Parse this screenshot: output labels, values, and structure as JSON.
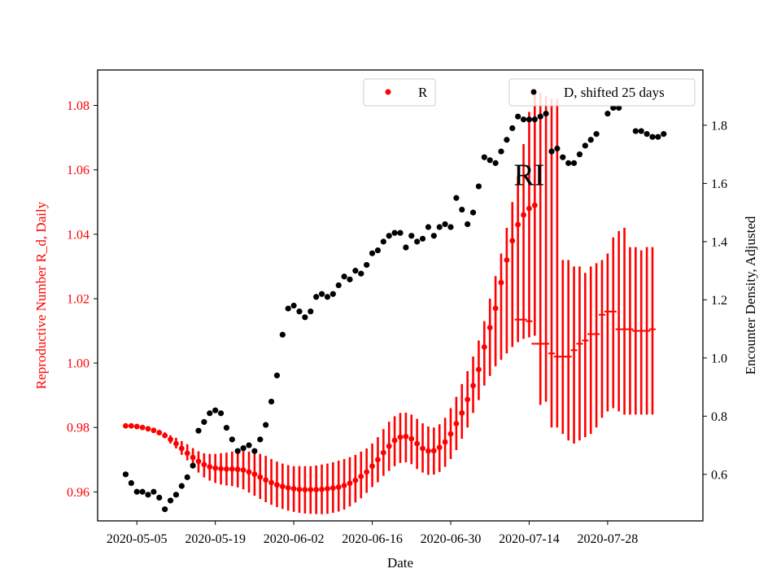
{
  "chart_data": {
    "type": "scatter",
    "title": "",
    "xlabel": "Date",
    "ylabel_left": "Reproductive Number R_d, Daily",
    "ylabel_right": "Encounter Density, Adjusted",
    "x_ticks": [
      "2020-05-05",
      "2020-05-19",
      "2020-06-02",
      "2020-06-16",
      "2020-06-30",
      "2020-07-14",
      "2020-07-28"
    ],
    "xlim": [
      "2020-04-28",
      "2020-08-14"
    ],
    "ylim_left": [
      0.951,
      1.091
    ],
    "y_ticks_left": [
      0.96,
      0.98,
      1.0,
      1.02,
      1.04,
      1.06,
      1.08
    ],
    "ylim_right": [
      0.44,
      1.99
    ],
    "y_ticks_right": [
      0.6,
      0.8,
      1.0,
      1.2,
      1.4,
      1.6,
      1.8
    ],
    "annotation": "RI",
    "annotation_at": {
      "date": "2020-07-14",
      "y": 1.0585
    },
    "legend": [
      {
        "label": "R",
        "color": "#ff0000",
        "placement": "upper-center"
      },
      {
        "label": "D, shifted 25 days",
        "color": "#000000",
        "placement": "upper-right"
      }
    ],
    "colors": {
      "R": "#ff0000",
      "D": "#000000",
      "left_axis_text": "#ff0000"
    },
    "series": [
      {
        "name": "R",
        "axis": "left",
        "marker": "point-with-error-bars",
        "x_start": "2020-05-03",
        "x_step_days": 1,
        "values": [
          0.9805,
          0.9805,
          0.9803,
          0.98,
          0.9796,
          0.9791,
          0.9784,
          0.9775,
          0.9763,
          0.975,
          0.9735,
          0.972,
          0.9707,
          0.9695,
          0.9685,
          0.9678,
          0.9674,
          0.9672,
          0.9671,
          0.9671,
          0.967,
          0.9668,
          0.9662,
          0.9655,
          0.9646,
          0.9637,
          0.9629,
          0.9622,
          0.9617,
          0.9613,
          0.961,
          0.9608,
          0.9607,
          0.9607,
          0.9607,
          0.9608,
          0.961,
          0.9612,
          0.9615,
          0.962,
          0.9627,
          0.9636,
          0.9648,
          0.9662,
          0.968,
          0.97,
          0.9722,
          0.9742,
          0.976,
          0.977,
          0.9772,
          0.9765,
          0.975,
          0.9735,
          0.9727,
          0.9728,
          0.9738,
          0.9755,
          0.978,
          0.9812,
          0.9845,
          0.9887,
          0.993,
          0.998,
          1.005,
          1.011,
          1.017,
          1.025,
          1.032,
          1.038,
          1.043,
          1.046,
          1.048,
          1.049,
          null,
          null,
          null,
          null,
          null,
          null,
          null,
          null,
          null,
          null,
          null,
          null,
          null,
          null,
          null,
          null,
          null,
          null,
          null,
          null,
          null
        ],
        "band_lower": [
          0.9805,
          0.9805,
          0.9803,
          0.98,
          0.9796,
          0.979,
          0.978,
          0.9768,
          0.975,
          0.9735,
          0.9715,
          0.9698,
          0.9678,
          0.966,
          0.9645,
          0.9635,
          0.9628,
          0.9623,
          0.962,
          0.9618,
          0.9614,
          0.9608,
          0.9598,
          0.9588,
          0.9578,
          0.9568,
          0.956,
          0.9553,
          0.9547,
          0.9542,
          0.9538,
          0.9535,
          0.9533,
          0.9532,
          0.9531,
          0.9531,
          0.9532,
          0.9535,
          0.9539,
          0.9545,
          0.9555,
          0.9567,
          0.958,
          0.9597,
          0.9615,
          0.963,
          0.965,
          0.9665,
          0.968,
          0.969,
          0.9692,
          0.9686,
          0.9671,
          0.966,
          0.9653,
          0.9654,
          0.9662,
          0.9678,
          0.9702,
          0.973,
          0.9765,
          0.98,
          0.9845,
          0.9885,
          0.993,
          0.996,
          0.999,
          1.001,
          1.003,
          1.005,
          1.0065,
          1.0075,
          1.008,
          1.0085,
          0.987,
          0.988,
          0.98,
          0.98,
          0.978,
          0.976,
          0.975,
          0.976,
          0.977,
          0.978,
          0.98,
          0.983,
          0.985,
          0.986,
          0.985,
          0.984,
          0.984,
          0.984,
          0.984,
          0.984,
          0.984
        ],
        "band_upper": [
          0.9805,
          0.9805,
          0.9803,
          0.9801,
          0.9798,
          0.9795,
          0.9792,
          0.9785,
          0.9776,
          0.9768,
          0.9758,
          0.9748,
          0.9736,
          0.9726,
          0.972,
          0.9718,
          0.9718,
          0.972,
          0.9722,
          0.9725,
          0.9727,
          0.9727,
          0.9725,
          0.9723,
          0.9718,
          0.9712,
          0.9702,
          0.9694,
          0.9688,
          0.9683,
          0.968,
          0.968,
          0.968,
          0.968,
          0.9682,
          0.9685,
          0.9688,
          0.9692,
          0.9697,
          0.9702,
          0.9708,
          0.9715,
          0.9725,
          0.9735,
          0.975,
          0.977,
          0.9795,
          0.9818,
          0.9835,
          0.9845,
          0.9846,
          0.984,
          0.9827,
          0.9813,
          0.9803,
          0.98,
          0.981,
          0.983,
          0.986,
          0.9895,
          0.9935,
          0.9975,
          1.002,
          1.007,
          1.013,
          1.02,
          1.027,
          1.034,
          1.042,
          1.05,
          1.058,
          1.068,
          1.078,
          1.085,
          1.084,
          1.083,
          1.082,
          1.082,
          1.032,
          1.032,
          1.03,
          1.03,
          1.028,
          1.03,
          1.031,
          1.032,
          1.034,
          1.039,
          1.041,
          1.042,
          1.036,
          1.036,
          1.035,
          1.036,
          1.036
        ],
        "dash_marks": [
          1.0135,
          1.0135,
          1.013,
          1.006,
          1.006,
          1.006,
          1.003,
          1.002,
          1.002,
          1.002,
          1.004,
          1.006,
          1.007,
          1.009,
          1.009,
          1.015,
          1.016,
          1.016,
          1.0105,
          1.0105,
          1.0105,
          1.01,
          1.01,
          1.01,
          1.0105
        ]
      },
      {
        "name": "D, shifted 25 days",
        "axis": "right",
        "marker": "point",
        "x_start": "2020-05-03",
        "x_step_days": 1,
        "values": [
          0.6,
          0.57,
          0.54,
          0.54,
          0.53,
          0.54,
          0.52,
          0.48,
          0.51,
          0.53,
          0.56,
          0.59,
          0.63,
          0.75,
          0.78,
          0.81,
          0.82,
          0.81,
          0.76,
          0.72,
          0.68,
          0.69,
          0.7,
          0.68,
          0.72,
          0.77,
          0.85,
          0.94,
          1.08,
          1.17,
          1.18,
          1.16,
          1.14,
          1.16,
          1.21,
          1.22,
          1.21,
          1.22,
          1.25,
          1.28,
          1.27,
          1.3,
          1.29,
          1.32,
          1.36,
          1.37,
          1.4,
          1.42,
          1.43,
          1.43,
          1.38,
          1.42,
          1.4,
          1.41,
          1.45,
          1.42,
          1.45,
          1.46,
          1.45,
          1.55,
          1.51,
          1.46,
          1.5,
          1.59,
          1.69,
          1.68,
          1.67,
          1.71,
          1.75,
          1.79,
          1.83,
          1.82,
          1.82,
          1.82,
          1.83,
          1.84,
          1.71,
          1.72,
          1.69,
          1.67,
          1.67,
          1.7,
          1.73,
          1.75,
          1.77,
          null,
          1.84,
          1.86,
          1.86,
          null,
          null,
          1.78,
          1.78,
          1.77,
          1.76,
          1.76,
          1.77
        ],
        "values_note_x_offset_days": 0
      }
    ]
  }
}
